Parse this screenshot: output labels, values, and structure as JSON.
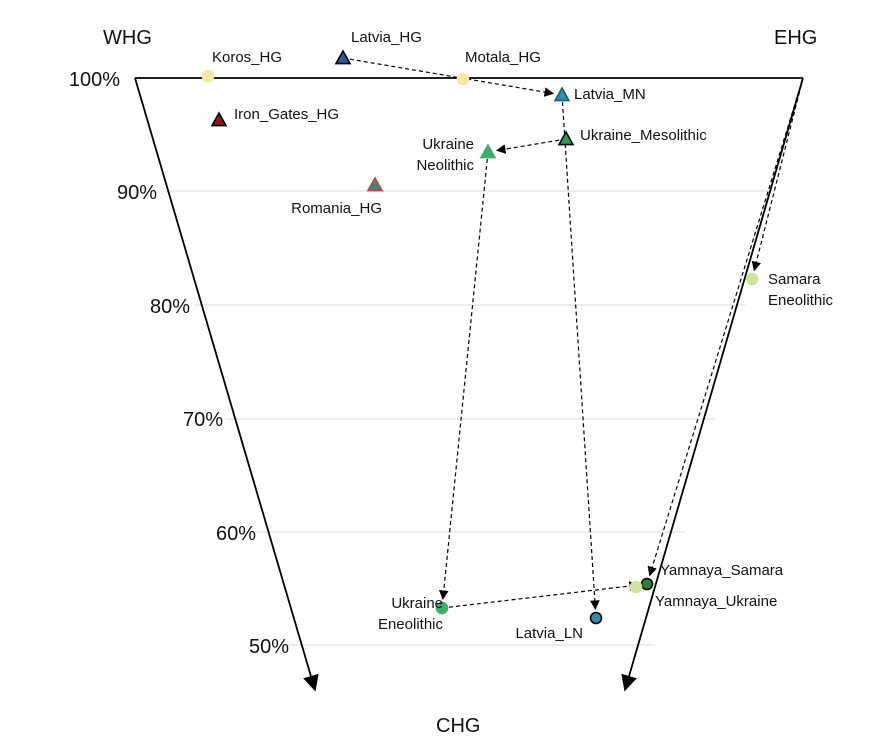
{
  "corners": {
    "top_left": "WHG",
    "top_right": "EHG",
    "bottom": "CHG"
  },
  "ticks": [
    "100%",
    "90%",
    "80%",
    "70%",
    "60%",
    "50%"
  ],
  "populations": [
    {
      "id": "koros",
      "lines": [
        "Koros_HG"
      ],
      "shape": "circle",
      "fill": "#f7e7a6",
      "stroke": "#f7e7a6"
    },
    {
      "id": "latvia_hg",
      "lines": [
        "Latvia_HG"
      ],
      "shape": "triangle",
      "fill": "#2a5b9a",
      "stroke": "#000000"
    },
    {
      "id": "motala",
      "lines": [
        "Motala_HG"
      ],
      "shape": "circle",
      "fill": "#f7e7a6",
      "stroke": "#f7e7a6"
    },
    {
      "id": "latvia_mn",
      "lines": [
        "Latvia_MN"
      ],
      "shape": "triangle",
      "fill": "#2f8fa6",
      "stroke": "#1c5f80"
    },
    {
      "id": "iron_gates",
      "lines": [
        "Iron_Gates_HG"
      ],
      "shape": "triangle",
      "fill": "#8b1a1a",
      "stroke": "#000000"
    },
    {
      "id": "ukraine_meso",
      "lines": [
        "Ukraine_Mesolithic"
      ],
      "shape": "triangle",
      "fill": "#2e9e5b",
      "stroke": "#000000"
    },
    {
      "id": "ukraine_neo",
      "lines": [
        "Ukraine",
        "Neolithic"
      ],
      "shape": "triangle",
      "fill": "#3cb06a",
      "stroke": "#3cb06a"
    },
    {
      "id": "romania",
      "lines": [
        "Romania_HG"
      ],
      "shape": "triangle",
      "fill": "#3a8a7a",
      "stroke": "#d13b3b"
    },
    {
      "id": "samara",
      "lines": [
        "Samara",
        "Eneolithic"
      ],
      "shape": "circle",
      "fill": "#cfe3a0",
      "stroke": "#cfe3a0"
    },
    {
      "id": "yamnaya_samara",
      "lines": [
        "Yamnaya_Samara"
      ],
      "shape": "circle",
      "fill": "#2e7d3a",
      "stroke": "#000000"
    },
    {
      "id": "yamnaya_ukraine",
      "lines": [
        "Yamnaya_Ukraine"
      ],
      "shape": "circle",
      "fill": "#cfe3a0",
      "stroke": "#cfe3a0"
    },
    {
      "id": "ukraine_eneo",
      "lines": [
        "Ukraine",
        "Eneolithic"
      ],
      "shape": "circle",
      "fill": "#3cb06a",
      "stroke": "#3cb06a"
    },
    {
      "id": "latvia_ln",
      "lines": [
        "Latvia_LN"
      ],
      "shape": "circle",
      "fill": "#2f8fa6",
      "stroke": "#000000"
    }
  ],
  "arrows": [
    {
      "from": "latvia_hg",
      "to": "latvia_mn"
    },
    {
      "from": "ukraine_meso",
      "to": "ukraine_neo"
    },
    {
      "from": "ukraine_neo",
      "to": "ukraine_eneo"
    },
    {
      "from": "latvia_mn",
      "to": "latvia_ln"
    },
    {
      "from": "ukraine_eneo",
      "to": "yamnaya_samara"
    },
    {
      "from": "ehg_corner",
      "to": "samara"
    },
    {
      "from": "ehg_corner",
      "to": "yamnaya_samara"
    }
  ]
}
